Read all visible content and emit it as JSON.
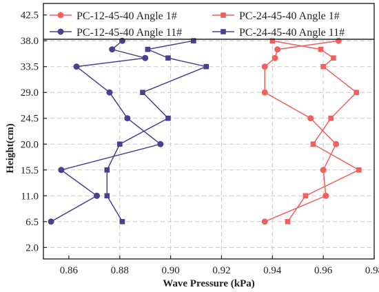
{
  "chart_data": {
    "type": "line",
    "title": "",
    "xlabel": "Wave Pressure (kPa)",
    "ylabel": "Height(cm)",
    "xlim": [
      0.85,
      0.98
    ],
    "ylim": [
      0,
      44.5
    ],
    "xticks": [
      0.86,
      0.88,
      0.9,
      0.92,
      0.94,
      0.96,
      0.98
    ],
    "xtick_labels": [
      "0.86",
      "0.88",
      "0.90",
      "0.92",
      "0.94",
      "0.96",
      "0.98"
    ],
    "yticks": [
      2.0,
      6.5,
      11.0,
      15.5,
      20.0,
      24.5,
      29.0,
      33.5,
      38.0,
      42.5
    ],
    "ytick_labels": [
      "2.0",
      "6.5",
      "11.0",
      "15.5",
      "20.0",
      "24.5",
      "29.0",
      "33.5",
      "38.0",
      "42.5"
    ],
    "grid": true,
    "legend_position": "top",
    "series": [
      {
        "name": "PC-12-45-40 Angle 1#",
        "color": "#f0605d",
        "marker": "circle",
        "points": [
          [
            0.966,
            38.0
          ],
          [
            0.942,
            36.5
          ],
          [
            0.941,
            35.0
          ],
          [
            0.937,
            33.5
          ],
          [
            0.937,
            29.0
          ],
          [
            0.955,
            24.5
          ],
          [
            0.965,
            20.0
          ],
          [
            0.96,
            15.5
          ],
          [
            0.961,
            11.0
          ],
          [
            0.937,
            6.5
          ]
        ]
      },
      {
        "name": "PC-24-45-40 Angle 1#",
        "color": "#f0605d",
        "marker": "square",
        "points": [
          [
            0.94,
            38.0
          ],
          [
            0.959,
            36.5
          ],
          [
            0.964,
            35.0
          ],
          [
            0.96,
            33.5
          ],
          [
            0.973,
            29.0
          ],
          [
            0.963,
            24.5
          ],
          [
            0.956,
            20.0
          ],
          [
            0.974,
            15.5
          ],
          [
            0.953,
            11.0
          ],
          [
            0.946,
            6.5
          ]
        ]
      },
      {
        "name": "PC-12-45-40 Angle 11#",
        "color": "#48418f",
        "marker": "circle",
        "points": [
          [
            0.881,
            38.0
          ],
          [
            0.877,
            36.5
          ],
          [
            0.89,
            35.0
          ],
          [
            0.863,
            33.5
          ],
          [
            0.876,
            29.0
          ],
          [
            0.883,
            24.5
          ],
          [
            0.896,
            20.0
          ],
          [
            0.857,
            15.5
          ],
          [
            0.871,
            11.0
          ],
          [
            0.853,
            6.5
          ]
        ]
      },
      {
        "name": "PC-24-45-40 Angle 11#",
        "color": "#48418f",
        "marker": "square",
        "points": [
          [
            0.909,
            38.0
          ],
          [
            0.891,
            36.5
          ],
          [
            0.899,
            35.0
          ],
          [
            0.914,
            33.5
          ],
          [
            0.889,
            29.0
          ],
          [
            0.899,
            24.5
          ],
          [
            0.88,
            20.0
          ],
          [
            0.875,
            15.5
          ],
          [
            0.875,
            11.0
          ],
          [
            0.881,
            6.5
          ]
        ]
      }
    ]
  }
}
